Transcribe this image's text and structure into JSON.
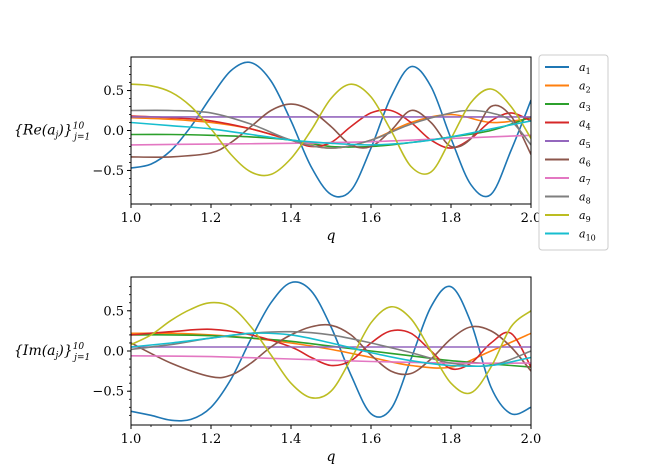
{
  "chart_data": [
    {
      "type": "line",
      "ylabel": "{Re(a_j)}_{j=1}^{10}",
      "ylabel_parts": {
        "main": "{Re(a",
        "sub_j": "j",
        "close": ")}",
        "sup": "10",
        "sub": "j=1"
      },
      "xlabel": "q",
      "xlim": [
        1.0,
        2.0
      ],
      "ylim": [
        -0.92,
        0.92
      ],
      "xticks": [
        "1.0",
        "1.2",
        "1.4",
        "1.6",
        "1.8",
        "2.0"
      ],
      "yticks": [
        "0.5",
        "0.0",
        "−0.5"
      ],
      "xtick_values": [
        1.0,
        1.2,
        1.4,
        1.6,
        1.8,
        2.0
      ],
      "ytick_values": [
        0.5,
        0.0,
        -0.5
      ],
      "grid": false,
      "legend": "outside-right",
      "series": [
        {
          "name": "a1",
          "color": "#1f77b4",
          "x": [
            1.0,
            1.05,
            1.1,
            1.15,
            1.2,
            1.25,
            1.3,
            1.35,
            1.4,
            1.45,
            1.5,
            1.55,
            1.6,
            1.65,
            1.7,
            1.75,
            1.8,
            1.85,
            1.9,
            1.95,
            2.0
          ],
          "values": [
            -0.47,
            -0.42,
            -0.25,
            0.05,
            0.42,
            0.75,
            0.85,
            0.62,
            0.12,
            -0.45,
            -0.8,
            -0.75,
            -0.22,
            0.42,
            0.8,
            0.55,
            -0.1,
            -0.68,
            -0.8,
            -0.25,
            0.38
          ]
        },
        {
          "name": "a2",
          "color": "#ff7f0e",
          "x": [
            1.0,
            1.1,
            1.2,
            1.3,
            1.4,
            1.5,
            1.6,
            1.7,
            1.8,
            1.9,
            2.0
          ],
          "values": [
            0.16,
            0.14,
            0.1,
            0.02,
            -0.12,
            -0.22,
            -0.12,
            0.1,
            0.2,
            0.1,
            0.15
          ]
        },
        {
          "name": "a3",
          "color": "#2ca02c",
          "x": [
            1.0,
            1.1,
            1.2,
            1.3,
            1.4,
            1.5,
            1.6,
            1.7,
            1.8,
            1.9,
            2.0
          ],
          "values": [
            -0.05,
            -0.05,
            -0.06,
            -0.08,
            -0.12,
            -0.2,
            -0.2,
            -0.15,
            -0.08,
            0.0,
            0.17
          ]
        },
        {
          "name": "a4",
          "color": "#d62728",
          "x": [
            1.0,
            1.1,
            1.2,
            1.3,
            1.4,
            1.45,
            1.5,
            1.55,
            1.6,
            1.65,
            1.7,
            1.75,
            1.8,
            1.85,
            1.9,
            1.95,
            2.0
          ],
          "values": [
            0.18,
            0.16,
            0.12,
            0.02,
            -0.12,
            -0.2,
            -0.15,
            0.05,
            0.22,
            0.25,
            0.1,
            -0.12,
            -0.22,
            -0.1,
            0.12,
            0.22,
            0.12
          ]
        },
        {
          "name": "a5",
          "color": "#9467bd",
          "x": [
            1.0,
            1.2,
            1.4,
            1.6,
            1.8,
            2.0
          ],
          "values": [
            0.17,
            0.17,
            0.17,
            0.17,
            0.17,
            0.17
          ]
        },
        {
          "name": "a6",
          "color": "#8c564b",
          "x": [
            1.0,
            1.1,
            1.2,
            1.25,
            1.3,
            1.35,
            1.4,
            1.45,
            1.5,
            1.55,
            1.6,
            1.65,
            1.7,
            1.75,
            1.8,
            1.85,
            1.9,
            1.95,
            2.0
          ],
          "values": [
            -0.33,
            -0.33,
            -0.28,
            -0.15,
            0.05,
            0.25,
            0.33,
            0.25,
            0.05,
            -0.18,
            -0.2,
            0.0,
            0.25,
            0.1,
            -0.2,
            -0.1,
            0.3,
            0.18,
            -0.3
          ]
        },
        {
          "name": "a7",
          "color": "#e377c2",
          "x": [
            1.0,
            1.2,
            1.4,
            1.6,
            1.8,
            2.0
          ],
          "values": [
            -0.18,
            -0.17,
            -0.16,
            -0.14,
            -0.1,
            -0.06
          ]
        },
        {
          "name": "a8",
          "color": "#7f7f7f",
          "x": [
            1.0,
            1.1,
            1.2,
            1.3,
            1.4,
            1.5,
            1.6,
            1.7,
            1.8,
            1.85,
            1.9,
            1.95,
            2.0
          ],
          "values": [
            0.25,
            0.25,
            0.22,
            0.08,
            -0.12,
            -0.22,
            -0.12,
            0.08,
            0.22,
            0.25,
            0.22,
            0.12,
            -0.18
          ]
        },
        {
          "name": "a9",
          "color": "#bcbd22",
          "x": [
            1.0,
            1.05,
            1.1,
            1.15,
            1.2,
            1.25,
            1.3,
            1.35,
            1.4,
            1.45,
            1.5,
            1.55,
            1.6,
            1.65,
            1.7,
            1.75,
            1.8,
            1.85,
            1.9,
            1.95,
            2.0
          ],
          "values": [
            0.58,
            0.56,
            0.48,
            0.3,
            0.02,
            -0.3,
            -0.52,
            -0.55,
            -0.35,
            0.0,
            0.4,
            0.58,
            0.42,
            0.0,
            -0.45,
            -0.52,
            -0.1,
            0.35,
            0.52,
            0.3,
            -0.1
          ]
        },
        {
          "name": "a10",
          "color": "#17becf",
          "x": [
            1.0,
            1.1,
            1.2,
            1.3,
            1.4,
            1.5,
            1.6,
            1.7,
            1.8,
            1.9,
            2.0
          ],
          "values": [
            0.1,
            0.06,
            0.02,
            -0.05,
            -0.12,
            -0.16,
            -0.18,
            -0.15,
            -0.08,
            0.02,
            0.12
          ]
        }
      ]
    },
    {
      "type": "line",
      "ylabel": "{Im(a_j)}_{j=1}^{10}",
      "ylabel_parts": {
        "main": "{Im(a",
        "sub_j": "j",
        "close": ")}",
        "sup": "10",
        "sub": "j=1"
      },
      "xlabel": "q",
      "xlim": [
        1.0,
        2.0
      ],
      "ylim": [
        -0.92,
        0.92
      ],
      "xticks": [
        "1.0",
        "1.2",
        "1.4",
        "1.6",
        "1.8",
        "2.0"
      ],
      "yticks": [
        "0.5",
        "0.0",
        "−0.5"
      ],
      "xtick_values": [
        1.0,
        1.2,
        1.4,
        1.6,
        1.8,
        2.0
      ],
      "ytick_values": [
        0.5,
        0.0,
        -0.5
      ],
      "grid": false,
      "series": [
        {
          "name": "a1",
          "color": "#1f77b4",
          "x": [
            1.0,
            1.05,
            1.1,
            1.15,
            1.2,
            1.25,
            1.3,
            1.35,
            1.4,
            1.45,
            1.5,
            1.55,
            1.6,
            1.65,
            1.7,
            1.75,
            1.8,
            1.85,
            1.9,
            1.95,
            2.0
          ],
          "values": [
            -0.75,
            -0.8,
            -0.86,
            -0.85,
            -0.7,
            -0.35,
            0.15,
            0.6,
            0.85,
            0.75,
            0.3,
            -0.3,
            -0.78,
            -0.72,
            -0.1,
            0.55,
            0.8,
            0.35,
            -0.45,
            -0.78,
            -0.7
          ]
        },
        {
          "name": "a2",
          "color": "#ff7f0e",
          "x": [
            1.0,
            1.1,
            1.2,
            1.3,
            1.4,
            1.5,
            1.6,
            1.7,
            1.8,
            1.9,
            2.0
          ],
          "values": [
            0.22,
            0.22,
            0.2,
            0.16,
            0.1,
            0.02,
            -0.08,
            -0.18,
            -0.2,
            0.0,
            0.22
          ]
        },
        {
          "name": "a3",
          "color": "#2ca02c",
          "x": [
            1.0,
            1.1,
            1.2,
            1.3,
            1.4,
            1.5,
            1.6,
            1.7,
            1.8,
            1.9,
            2.0
          ],
          "values": [
            0.2,
            0.2,
            0.19,
            0.16,
            0.12,
            0.06,
            0.0,
            -0.06,
            -0.12,
            -0.16,
            -0.2
          ]
        },
        {
          "name": "a4",
          "color": "#d62728",
          "x": [
            1.0,
            1.1,
            1.2,
            1.3,
            1.4,
            1.45,
            1.5,
            1.55,
            1.6,
            1.65,
            1.7,
            1.75,
            1.8,
            1.85,
            1.9,
            1.95,
            2.0
          ],
          "values": [
            0.2,
            0.24,
            0.27,
            0.2,
            0.05,
            -0.08,
            -0.18,
            -0.12,
            0.1,
            0.25,
            0.22,
            0.0,
            -0.22,
            -0.15,
            0.1,
            0.22,
            -0.2
          ]
        },
        {
          "name": "a5",
          "color": "#9467bd",
          "x": [
            1.0,
            1.2,
            1.4,
            1.6,
            1.8,
            2.0
          ],
          "values": [
            0.05,
            0.05,
            0.05,
            0.05,
            0.05,
            0.05
          ]
        },
        {
          "name": "a6",
          "color": "#8c564b",
          "x": [
            1.0,
            1.1,
            1.2,
            1.25,
            1.3,
            1.35,
            1.4,
            1.45,
            1.5,
            1.55,
            1.6,
            1.65,
            1.7,
            1.75,
            1.8,
            1.85,
            1.9,
            1.95,
            2.0
          ],
          "values": [
            0.1,
            -0.15,
            -0.32,
            -0.3,
            -0.15,
            0.05,
            0.2,
            0.3,
            0.32,
            0.2,
            -0.05,
            -0.25,
            -0.28,
            -0.1,
            0.15,
            0.3,
            0.25,
            0.05,
            -0.25
          ]
        },
        {
          "name": "a7",
          "color": "#e377c2",
          "x": [
            1.0,
            1.2,
            1.4,
            1.6,
            1.8,
            2.0
          ],
          "values": [
            -0.06,
            -0.07,
            -0.1,
            -0.13,
            -0.15,
            -0.15
          ]
        },
        {
          "name": "a8",
          "color": "#7f7f7f",
          "x": [
            1.0,
            1.1,
            1.2,
            1.3,
            1.4,
            1.5,
            1.6,
            1.7,
            1.8,
            1.9,
            2.0
          ],
          "values": [
            0.02,
            0.08,
            0.16,
            0.22,
            0.24,
            0.2,
            0.1,
            -0.02,
            -0.15,
            -0.18,
            0.0
          ]
        },
        {
          "name": "a9",
          "color": "#bcbd22",
          "x": [
            1.0,
            1.05,
            1.1,
            1.15,
            1.2,
            1.25,
            1.3,
            1.35,
            1.4,
            1.45,
            1.5,
            1.55,
            1.6,
            1.65,
            1.7,
            1.75,
            1.8,
            1.85,
            1.9,
            1.95,
            2.0
          ],
          "values": [
            0.08,
            0.2,
            0.38,
            0.52,
            0.6,
            0.55,
            0.3,
            -0.05,
            -0.4,
            -0.58,
            -0.5,
            -0.1,
            0.35,
            0.55,
            0.4,
            0.0,
            -0.4,
            -0.52,
            -0.2,
            0.3,
            0.5
          ]
        },
        {
          "name": "a10",
          "color": "#17becf",
          "x": [
            1.0,
            1.1,
            1.2,
            1.3,
            1.4,
            1.5,
            1.6,
            1.7,
            1.8,
            1.9,
            2.0
          ],
          "values": [
            0.05,
            0.1,
            0.16,
            0.22,
            0.2,
            0.1,
            -0.02,
            -0.12,
            -0.18,
            -0.18,
            -0.08
          ]
        }
      ]
    }
  ],
  "legend": {
    "entries": [
      {
        "base": "a",
        "sub": "1",
        "color": "#1f77b4"
      },
      {
        "base": "a",
        "sub": "2",
        "color": "#ff7f0e"
      },
      {
        "base": "a",
        "sub": "3",
        "color": "#2ca02c"
      },
      {
        "base": "a",
        "sub": "4",
        "color": "#d62728"
      },
      {
        "base": "a",
        "sub": "5",
        "color": "#9467bd"
      },
      {
        "base": "a",
        "sub": "6",
        "color": "#8c564b"
      },
      {
        "base": "a",
        "sub": "7",
        "color": "#e377c2"
      },
      {
        "base": "a",
        "sub": "8",
        "color": "#7f7f7f"
      },
      {
        "base": "a",
        "sub": "9",
        "color": "#bcbd22"
      },
      {
        "base": "a",
        "sub": "10",
        "color": "#17becf"
      }
    ]
  }
}
